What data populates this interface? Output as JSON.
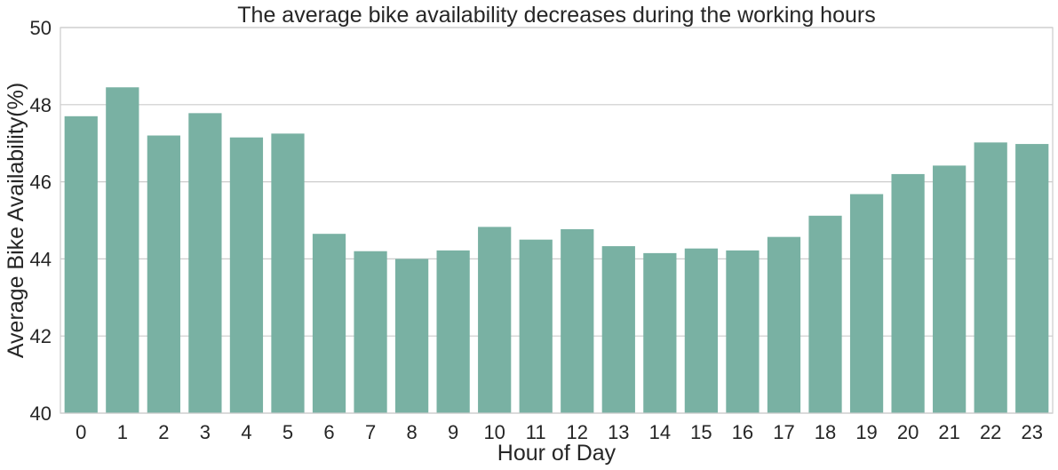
{
  "chart_data": {
    "type": "bar",
    "title": "The average bike availability decreases during the working hours",
    "xlabel": "Hour of Day",
    "ylabel": "Average Bike Availability(%)",
    "ylim": [
      40,
      50
    ],
    "yticks": [
      40,
      42,
      44,
      46,
      48,
      50
    ],
    "grid": "horizontal",
    "bar_color": "#79b1a3",
    "categories": [
      "0",
      "1",
      "2",
      "3",
      "4",
      "5",
      "6",
      "7",
      "8",
      "9",
      "10",
      "11",
      "12",
      "13",
      "14",
      "15",
      "16",
      "17",
      "18",
      "19",
      "20",
      "21",
      "22",
      "23"
    ],
    "values": [
      47.7,
      48.45,
      47.2,
      47.78,
      47.15,
      47.25,
      44.65,
      44.2,
      44.0,
      44.22,
      44.83,
      44.5,
      44.77,
      44.33,
      44.15,
      44.27,
      44.22,
      44.57,
      45.12,
      45.68,
      46.2,
      46.42,
      47.02,
      46.98
    ]
  }
}
